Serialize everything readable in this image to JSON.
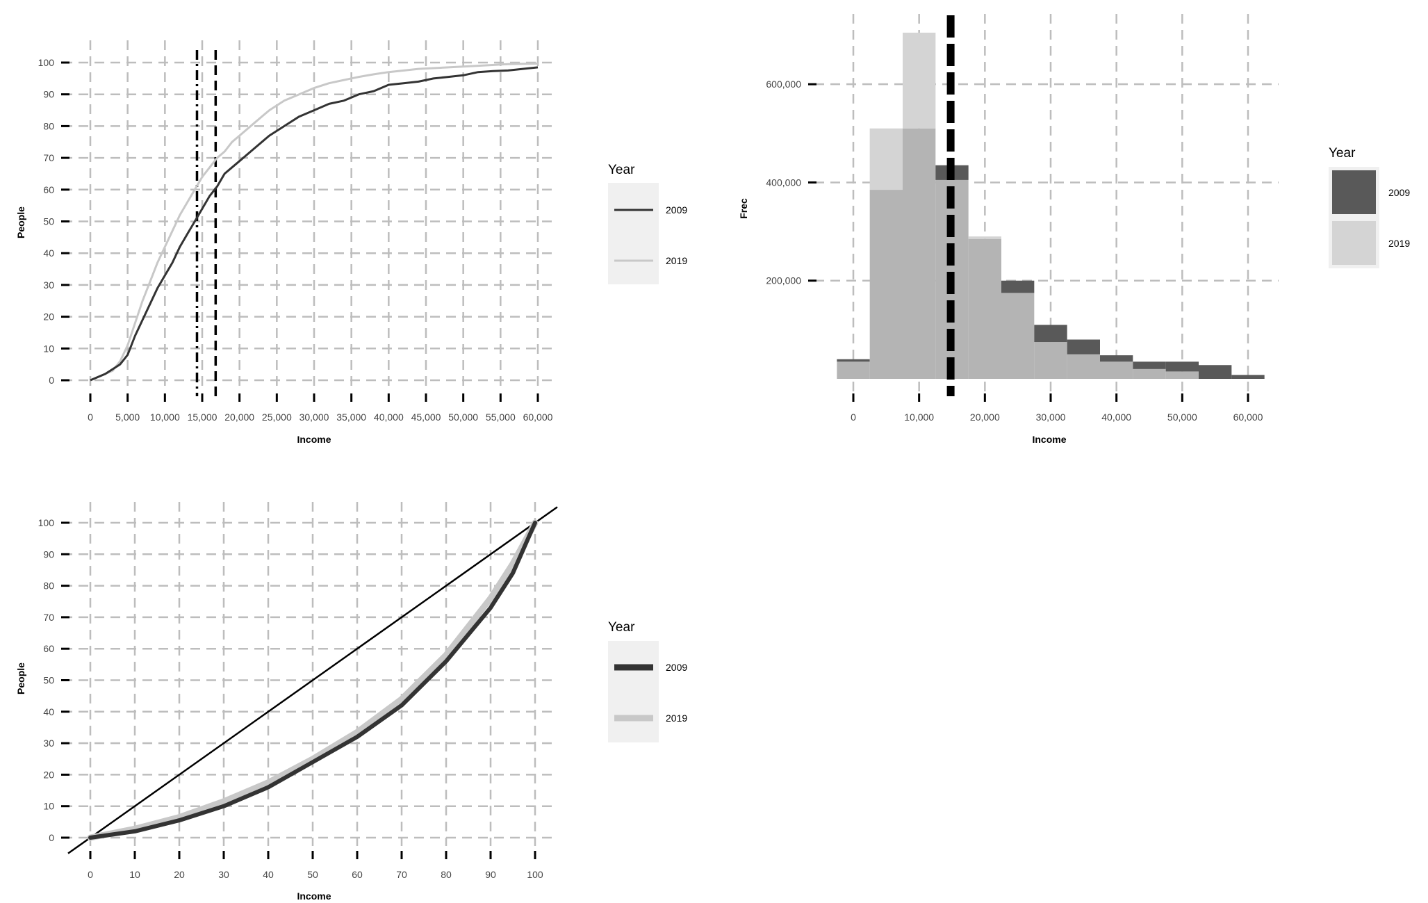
{
  "colors": {
    "series_2009": "#333333",
    "series_2019": "#c8c8c8",
    "grid": "#bdbdbd",
    "legend_bg": "#f0f0f0",
    "bar_2009": "#595959",
    "bar_2019": "#d4d4d4",
    "bar_overlap": "#b4b4b4"
  },
  "chart_data": [
    {
      "type": "line",
      "xlabel": "Income",
      "ylabel": "People",
      "xlim": [
        0,
        60000
      ],
      "ylim": [
        0,
        100
      ],
      "x_ticks": [
        "0",
        "5,000",
        "10,000",
        "15,000",
        "20,000",
        "25,000",
        "30,000",
        "35,000",
        "40,000",
        "45,000",
        "50,000",
        "55,000",
        "60,000"
      ],
      "y_ticks": [
        "0",
        "10",
        "20",
        "30",
        "40",
        "50",
        "60",
        "70",
        "80",
        "90",
        "100"
      ],
      "grid": true,
      "legend": {
        "title": "Year",
        "position": "right",
        "entries": [
          "2009",
          "2019"
        ]
      },
      "vlines": [
        {
          "x": 14300,
          "style": "dotdash"
        },
        {
          "x": 16800,
          "style": "dashed"
        }
      ],
      "series": [
        {
          "name": "2009",
          "x": [
            0,
            2000,
            4000,
            5000,
            6000,
            7000,
            8000,
            9000,
            10000,
            11000,
            12000,
            13000,
            14000,
            15000,
            16000,
            17000,
            18000,
            19000,
            20000,
            22000,
            24000,
            26000,
            28000,
            30000,
            32000,
            34000,
            36000,
            38000,
            40000,
            42000,
            44000,
            46000,
            48000,
            50000,
            52000,
            54000,
            56000,
            58000,
            60000
          ],
          "y": [
            0,
            2,
            5,
            8,
            14,
            19,
            24,
            29,
            33,
            37,
            42,
            46,
            50,
            54,
            58,
            61,
            65,
            67,
            69,
            73,
            77,
            80,
            83,
            85,
            87,
            88,
            90,
            91,
            93,
            93.5,
            94,
            95,
            95.5,
            96,
            97,
            97.3,
            97.5,
            98,
            98.5
          ]
        },
        {
          "name": "2019",
          "x": [
            0,
            2000,
            3000,
            4000,
            5000,
            6000,
            7000,
            8000,
            9000,
            10000,
            11000,
            12000,
            13000,
            14000,
            15000,
            16000,
            17000,
            18000,
            19000,
            20000,
            22000,
            24000,
            26000,
            28000,
            30000,
            32000,
            34000,
            36000,
            38000,
            40000,
            44000,
            48000,
            52000,
            56000,
            60000
          ],
          "y": [
            0,
            2,
            3,
            6,
            11,
            18,
            25,
            31,
            37,
            42,
            47,
            52,
            56,
            60,
            64,
            67,
            70,
            72,
            75,
            77,
            81,
            85,
            88,
            90,
            92,
            93.5,
            94.5,
            95.5,
            96.3,
            97,
            98,
            98.5,
            99,
            99.5,
            99.7
          ]
        }
      ]
    },
    {
      "type": "bar",
      "xlabel": "Income",
      "ylabel": "Frec",
      "x_ticks": [
        "0",
        "10,000",
        "20,000",
        "30,000",
        "40,000",
        "50,000",
        "60,000"
      ],
      "y_ticks": [
        "200,000",
        "400,000",
        "600,000"
      ],
      "grid": true,
      "legend": {
        "title": "Year",
        "position": "right",
        "entries": [
          "2009",
          "2019"
        ]
      },
      "vlines": [
        {
          "x": 14800,
          "style": "dashed-thick"
        }
      ],
      "bin_width": 5000,
      "bin_starts": [
        -2500,
        2500,
        7500,
        12500,
        17500,
        22500,
        27500,
        32500,
        37500,
        42500,
        47500,
        52500,
        57500
      ],
      "series": [
        {
          "name": "2009",
          "values": [
            40000,
            385000,
            510000,
            435000,
            285000,
            200000,
            110000,
            80000,
            48000,
            35000,
            35000,
            28000,
            8000
          ]
        },
        {
          "name": "2019",
          "values": [
            35000,
            510000,
            705000,
            405000,
            290000,
            175000,
            75000,
            50000,
            35000,
            20000,
            15000,
            0,
            0
          ]
        }
      ]
    },
    {
      "type": "line",
      "xlabel": "Income",
      "ylabel": "People",
      "xlim": [
        0,
        100
      ],
      "ylim": [
        0,
        100
      ],
      "x_ticks": [
        "0",
        "10",
        "20",
        "30",
        "40",
        "50",
        "60",
        "70",
        "80",
        "90",
        "100"
      ],
      "y_ticks": [
        "0",
        "10",
        "20",
        "30",
        "40",
        "50",
        "60",
        "70",
        "80",
        "90",
        "100"
      ],
      "grid": true,
      "legend": {
        "title": "Year",
        "position": "right",
        "entries": [
          "2009",
          "2019"
        ]
      },
      "series": [
        {
          "name": "2009",
          "x": [
            0,
            10,
            20,
            30,
            40,
            50,
            60,
            70,
            80,
            90,
            95,
            100
          ],
          "y": [
            0,
            2,
            5.5,
            10,
            16,
            24,
            32,
            42,
            56,
            73,
            84,
            100
          ]
        },
        {
          "name": "2019",
          "x": [
            0,
            10,
            20,
            30,
            40,
            50,
            60,
            70,
            80,
            90,
            95,
            100
          ],
          "y": [
            0,
            2.8,
            6.5,
            11.5,
            17.5,
            25,
            33.5,
            44,
            58,
            76,
            87,
            100
          ]
        },
        {
          "name": "",
          "x": [
            -5,
            105
          ],
          "y": [
            -5,
            105
          ]
        }
      ]
    }
  ]
}
